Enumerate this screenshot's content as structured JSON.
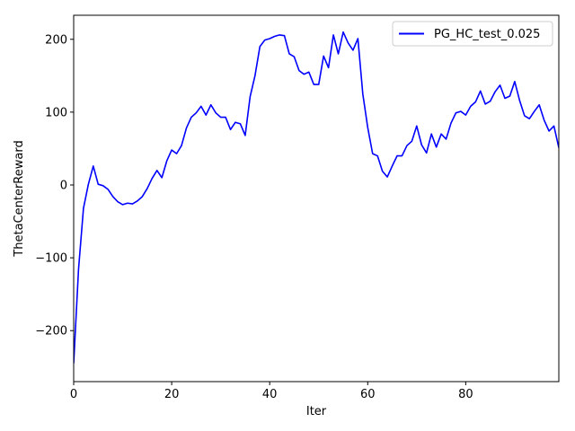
{
  "chart_data": {
    "type": "line",
    "title": "",
    "xlabel": "Iter",
    "ylabel": "ThetaCenterReward",
    "xlim": [
      0,
      99
    ],
    "ylim": [
      -270,
      233
    ],
    "xticks": [
      0,
      20,
      40,
      60,
      80
    ],
    "xtick_labels": [
      "0",
      "20",
      "40",
      "60",
      "80"
    ],
    "yticks": [
      -200,
      -100,
      0,
      100,
      200
    ],
    "ytick_labels": [
      "−200",
      "−100",
      "0",
      "100",
      "200"
    ],
    "grid": false,
    "legend": {
      "position": "top-right"
    },
    "series": [
      {
        "name": "PG_HC_test_0.025",
        "color": "#0000ff",
        "x": [
          0,
          1,
          2,
          3,
          4,
          5,
          6,
          7,
          8,
          9,
          10,
          11,
          12,
          13,
          14,
          15,
          16,
          17,
          18,
          19,
          20,
          21,
          22,
          23,
          24,
          25,
          26,
          27,
          28,
          29,
          30,
          31,
          32,
          33,
          34,
          35,
          36,
          37,
          38,
          39,
          40,
          41,
          42,
          43,
          44,
          45,
          46,
          47,
          48,
          49,
          50,
          51,
          52,
          53,
          54,
          55,
          56,
          57,
          58,
          59,
          60,
          61,
          62,
          63,
          64,
          65,
          66,
          67,
          68,
          69,
          70,
          71,
          72,
          73,
          74,
          75,
          76,
          77,
          78,
          79,
          80,
          81,
          82,
          83,
          84,
          85,
          86,
          87,
          88,
          89,
          90,
          91,
          92,
          93,
          94,
          95,
          96,
          97,
          98,
          99
        ],
        "y": [
          -245,
          -115,
          -32,
          1,
          26,
          1,
          -1,
          -6,
          -16,
          -23,
          -27,
          -25,
          -26,
          -22,
          -16,
          -5,
          9,
          20,
          10,
          33,
          48,
          43,
          54,
          78,
          93,
          99,
          108,
          96,
          110,
          99,
          93,
          93,
          76,
          86,
          84,
          68,
          121,
          150,
          190,
          199,
          201,
          204,
          206,
          205,
          180,
          176,
          157,
          152,
          155,
          138,
          138,
          177,
          161,
          206,
          180,
          210,
          195,
          185,
          201,
          125,
          79,
          43,
          40,
          19,
          11,
          26,
          40,
          40,
          54,
          60,
          81,
          55,
          44,
          70,
          52,
          70,
          63,
          85,
          99,
          101,
          96,
          108,
          114,
          129,
          111,
          115,
          128,
          137,
          119,
          122,
          142,
          116,
          95,
          91,
          101,
          110,
          89,
          74,
          81,
          51
        ]
      }
    ]
  }
}
